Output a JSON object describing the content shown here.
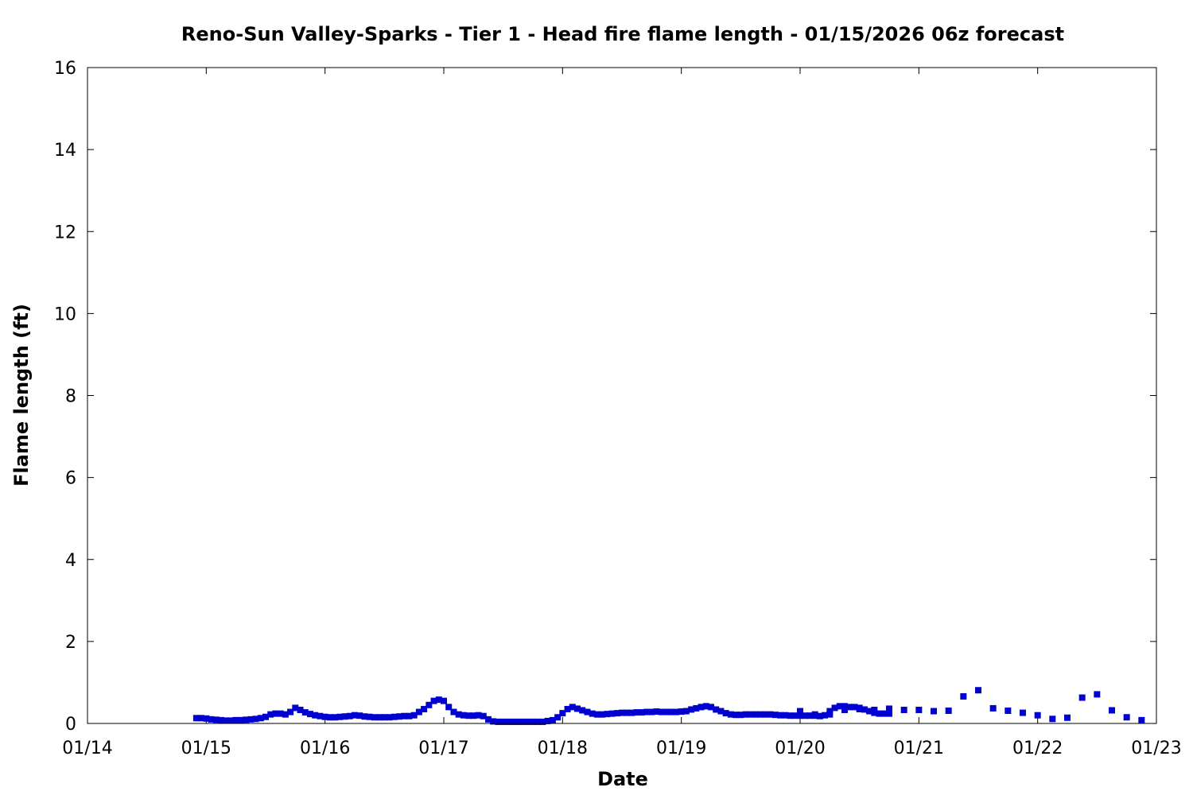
{
  "chart_data": {
    "type": "scatter",
    "title": "Reno-Sun Valley-Sparks - Tier 1 - Head fire flame length - 01/15/2026 06z forecast",
    "xlabel": "Date",
    "ylabel": "Flame length (ft)",
    "xlim": [
      "01/14",
      "01/23"
    ],
    "ylim": [
      0,
      16
    ],
    "x_tick_labels": [
      "01/14",
      "01/15",
      "01/16",
      "01/17",
      "01/18",
      "01/19",
      "01/20",
      "01/21",
      "01/22",
      "01/23"
    ],
    "y_tick_labels": [
      "0",
      "2",
      "4",
      "6",
      "8",
      "10",
      "12",
      "14",
      "16"
    ],
    "y_tick_values": [
      0,
      2,
      4,
      6,
      8,
      10,
      12,
      14,
      16
    ],
    "grid": false,
    "legend": "none",
    "marker": "square",
    "marker_color": "#0000d0",
    "series": [
      {
        "hourly_start": "01/14 22z",
        "hourly_step_hours": 1,
        "hourly_values": [
          0.13,
          0.13,
          0.12,
          0.1,
          0.09,
          0.08,
          0.07,
          0.07,
          0.08,
          0.08,
          0.09,
          0.1,
          0.11,
          0.13,
          0.16,
          0.22,
          0.24,
          0.24,
          0.22,
          0.28,
          0.38,
          0.33,
          0.27,
          0.23,
          0.2,
          0.18,
          0.16,
          0.15,
          0.15,
          0.16,
          0.17,
          0.18,
          0.2,
          0.19,
          0.17,
          0.16,
          0.15,
          0.15,
          0.15,
          0.15,
          0.16,
          0.17,
          0.18,
          0.18,
          0.2,
          0.28,
          0.35,
          0.45,
          0.55,
          0.58,
          0.55,
          0.4,
          0.28,
          0.22,
          0.2,
          0.19,
          0.19,
          0.2,
          0.18,
          0.1,
          0.05,
          0.04,
          0.04,
          0.04,
          0.04,
          0.04,
          0.04,
          0.04,
          0.04,
          0.04,
          0.04,
          0.06,
          0.08,
          0.15,
          0.25,
          0.35,
          0.4,
          0.36,
          0.32,
          0.28,
          0.24,
          0.22,
          0.22,
          0.23,
          0.24,
          0.25,
          0.26,
          0.26,
          0.26,
          0.27,
          0.27,
          0.28,
          0.28,
          0.29,
          0.28,
          0.28,
          0.28,
          0.28,
          0.29,
          0.3,
          0.34,
          0.37,
          0.4,
          0.42,
          0.4,
          0.34,
          0.3,
          0.25,
          0.22,
          0.21,
          0.21,
          0.22,
          0.22,
          0.22,
          0.22,
          0.22,
          0.22,
          0.21,
          0.2,
          0.2,
          0.19,
          0.19,
          0.19,
          0.19,
          0.19,
          0.19,
          0.18,
          0.2,
          0.3,
          0.38,
          0.42,
          0.42,
          0.4,
          0.4,
          0.38,
          0.34,
          0.3,
          0.26,
          0.24,
          0.24,
          0.24
        ],
        "three_hourly_start": "01/20 00z",
        "three_hourly_step_hours": 3,
        "three_hourly_values": [
          0.3,
          0.22,
          0.22,
          0.33,
          0.35,
          0.33,
          0.36,
          0.33,
          0.33,
          0.3,
          0.31,
          0.66,
          0.81,
          0.37,
          0.31,
          0.26,
          0.2,
          0.11,
          0.14,
          0.63,
          0.71,
          0.32,
          0.15,
          0.08
        ]
      }
    ]
  }
}
